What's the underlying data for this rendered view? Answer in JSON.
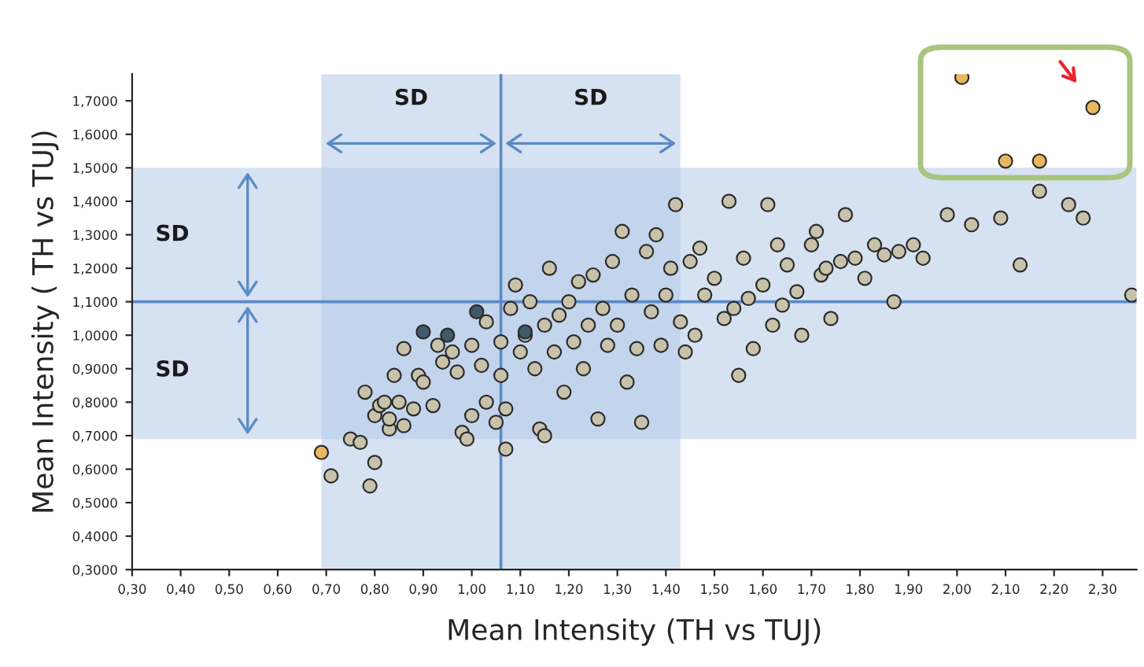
{
  "chart_data": {
    "type": "scatter",
    "xlabel": "Mean Intensity (TH vs TUJ)",
    "ylabel": "Mean Intensity ( TH vs TUJ)",
    "xlim": [
      0.3,
      2.37
    ],
    "ylim": [
      0.3,
      1.78
    ],
    "xticks": [
      {
        "value": 0.3,
        "label": "0,30"
      },
      {
        "value": 0.4,
        "label": "0,40"
      },
      {
        "value": 0.5,
        "label": "0,50"
      },
      {
        "value": 0.6,
        "label": "0,60"
      },
      {
        "value": 0.7,
        "label": "0,70"
      },
      {
        "value": 0.8,
        "label": "0,80"
      },
      {
        "value": 0.9,
        "label": "0,90"
      },
      {
        "value": 1.0,
        "label": "1,00"
      },
      {
        "value": 1.1,
        "label": "1,10"
      },
      {
        "value": 1.2,
        "label": "1,20"
      },
      {
        "value": 1.3,
        "label": "1,30"
      },
      {
        "value": 1.4,
        "label": "1,40"
      },
      {
        "value": 1.5,
        "label": "1,50"
      },
      {
        "value": 1.6,
        "label": "1,60"
      },
      {
        "value": 1.7,
        "label": "1,70"
      },
      {
        "value": 1.8,
        "label": "1,80"
      },
      {
        "value": 1.9,
        "label": "1,90"
      },
      {
        "value": 2.0,
        "label": "2,00"
      },
      {
        "value": 2.1,
        "label": "2,10"
      },
      {
        "value": 2.2,
        "label": "2,20"
      },
      {
        "value": 2.3,
        "label": "2,30"
      }
    ],
    "yticks": [
      {
        "value": 0.3,
        "label": "0,3000"
      },
      {
        "value": 0.4,
        "label": "0,4000"
      },
      {
        "value": 0.5,
        "label": "0,5000"
      },
      {
        "value": 0.6,
        "label": "0,6000"
      },
      {
        "value": 0.7,
        "label": "0,7000"
      },
      {
        "value": 0.8,
        "label": "0,8000"
      },
      {
        "value": 0.9,
        "label": "0,9000"
      },
      {
        "value": 1.0,
        "label": "1,0000"
      },
      {
        "value": 1.1,
        "label": "1,1000"
      },
      {
        "value": 1.2,
        "label": "1,2000"
      },
      {
        "value": 1.3,
        "label": "1,3000"
      },
      {
        "value": 1.4,
        "label": "1,4000"
      },
      {
        "value": 1.5,
        "label": "1,5000"
      },
      {
        "value": 1.6,
        "label": "1,6000"
      },
      {
        "value": 1.7,
        "label": "1,7000"
      }
    ],
    "grid": false,
    "legend": false,
    "marker": "circle",
    "bands": [
      {
        "axis": "x",
        "from": 0.69,
        "to": 1.43,
        "color": "#b4cbe8"
      },
      {
        "axis": "y",
        "from": 0.69,
        "to": 1.5,
        "color": "#b4cbe8"
      }
    ],
    "ref_lines": [
      {
        "axis": "x",
        "value": 1.06,
        "color": "#5b8ac6"
      },
      {
        "axis": "y",
        "value": 1.1,
        "color": "#5b8ac6"
      }
    ],
    "annotations": [
      "SD",
      "SD",
      "SD",
      "SD"
    ],
    "series": [
      {
        "color": "#c9c2ab",
        "x": [
          0.71,
          0.75,
          0.77,
          0.78,
          0.79,
          0.8,
          0.8,
          0.81,
          0.82,
          0.83,
          0.83,
          0.84,
          0.85,
          0.86,
          0.86,
          0.88,
          0.89,
          0.9,
          0.92,
          0.93,
          0.94,
          0.96,
          0.97,
          0.98,
          0.99,
          1.0,
          1.0,
          1.02,
          1.03,
          1.03,
          1.05,
          1.06,
          1.06,
          1.07,
          1.07,
          1.08,
          1.09,
          1.1,
          1.11,
          1.12,
          1.13,
          1.14,
          1.15,
          1.15,
          1.16,
          1.17,
          1.18,
          1.19,
          1.2,
          1.21,
          1.22,
          1.23,
          1.24,
          1.25,
          1.26,
          1.27,
          1.28,
          1.29,
          1.3,
          1.31,
          1.32,
          1.33,
          1.34,
          1.35,
          1.36,
          1.37,
          1.38,
          1.39,
          1.4,
          1.41,
          1.42,
          1.43,
          1.44,
          1.45,
          1.46,
          1.47,
          1.48,
          1.5,
          1.52,
          1.53,
          1.54,
          1.55,
          1.56,
          1.57,
          1.58,
          1.6,
          1.61,
          1.62,
          1.63,
          1.64,
          1.65,
          1.67,
          1.68,
          1.7,
          1.71,
          1.72,
          1.73,
          1.74,
          1.76,
          1.77,
          1.79,
          1.81,
          1.83,
          1.85,
          1.87,
          1.88,
          1.91,
          1.93,
          1.98,
          2.03,
          2.09,
          2.13,
          2.17,
          2.23,
          2.26,
          2.36
        ],
        "values": [
          0.58,
          0.69,
          0.68,
          0.83,
          0.55,
          0.62,
          0.76,
          0.79,
          0.8,
          0.72,
          0.75,
          0.88,
          0.8,
          0.73,
          0.96,
          0.78,
          0.88,
          0.86,
          0.79,
          0.97,
          0.92,
          0.95,
          0.89,
          0.71,
          0.69,
          0.97,
          0.76,
          0.91,
          1.04,
          0.8,
          0.74,
          0.98,
          0.88,
          0.66,
          0.78,
          1.08,
          1.15,
          0.95,
          1.0,
          1.1,
          0.9,
          0.72,
          0.7,
          1.03,
          1.2,
          0.95,
          1.06,
          0.83,
          1.1,
          0.98,
          1.16,
          0.9,
          1.03,
          1.18,
          0.75,
          1.08,
          0.97,
          1.22,
          1.03,
          1.31,
          0.86,
          1.12,
          0.96,
          0.74,
          1.25,
          1.07,
          1.3,
          0.97,
          1.12,
          1.2,
          1.39,
          1.04,
          0.95,
          1.22,
          1.0,
          1.26,
          1.12,
          1.17,
          1.05,
          1.4,
          1.08,
          0.88,
          1.23,
          1.11,
          0.96,
          1.15,
          1.39,
          1.03,
          1.27,
          1.09,
          1.21,
          1.13,
          1.0,
          1.27,
          1.31,
          1.18,
          1.2,
          1.05,
          1.22,
          1.36,
          1.23,
          1.17,
          1.27,
          1.24,
          1.1,
          1.25,
          1.27,
          1.23,
          1.36,
          1.33,
          1.35,
          1.21,
          1.43,
          1.39,
          1.35,
          1.12
        ]
      },
      {
        "color": "#3f5a6a",
        "x": [
          0.9,
          0.95,
          1.01,
          1.11
        ],
        "values": [
          1.01,
          1.0,
          1.07,
          1.01
        ]
      },
      {
        "color": "#e8b860",
        "x": [
          0.69,
          2.01,
          2.1,
          2.17,
          2.28
        ],
        "values": [
          0.65,
          1.77,
          1.52,
          1.52,
          1.68
        ]
      }
    ]
  }
}
